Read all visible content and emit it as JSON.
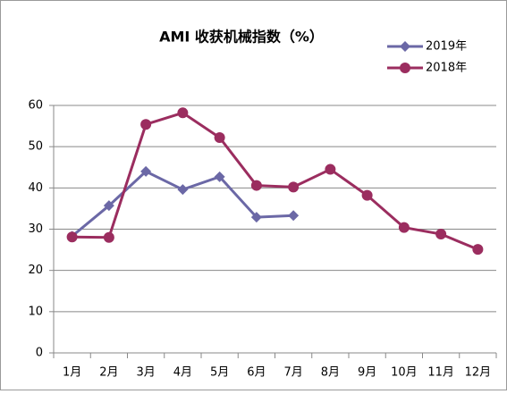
{
  "chart_data": {
    "type": "line",
    "title": "AMI 收获机械指数（%）",
    "categories": [
      "1月",
      "2月",
      "3月",
      "4月",
      "5月",
      "6月",
      "7月",
      "8月",
      "9月",
      "10月",
      "11月",
      "12月"
    ],
    "series": [
      {
        "name": "2019年",
        "color": "#6b68a6",
        "marker": "diamond",
        "values": [
          28.3,
          35.7,
          44.0,
          39.6,
          42.7,
          32.9,
          33.3,
          null,
          null,
          null,
          null,
          null
        ]
      },
      {
        "name": "2018年",
        "color": "#9b2d5f",
        "marker": "circle",
        "values": [
          28.1,
          28.0,
          55.4,
          58.2,
          52.2,
          40.6,
          40.2,
          44.5,
          38.2,
          30.4,
          28.8,
          25.1
        ]
      }
    ],
    "ylim": [
      0,
      60
    ],
    "yticks": [
      0,
      10,
      20,
      30,
      40,
      50,
      60
    ],
    "grid": true,
    "legend": "top-right"
  }
}
